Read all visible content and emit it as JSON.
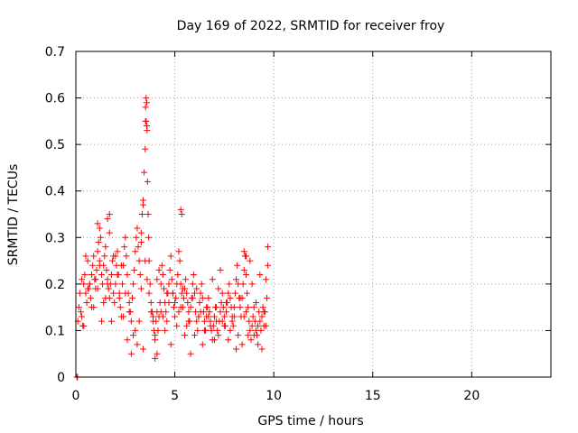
{
  "chart_data": {
    "type": "scatter",
    "title": "Day 169 of 2022, SRMTID for receiver froy",
    "xlabel": "GPS time / hours",
    "ylabel": "SRMTID / TECUs",
    "xlim": [
      0,
      24
    ],
    "ylim": [
      0,
      0.7
    ],
    "xticks": [
      0,
      5,
      10,
      15,
      20
    ],
    "xtick_labels": [
      "0",
      "5",
      "10",
      "15",
      "20"
    ],
    "yticks": [
      0,
      0.1,
      0.2,
      0.3,
      0.4,
      0.5,
      0.6,
      0.7
    ],
    "ytick_labels": [
      "0",
      "0.1",
      "0.2",
      "0.3",
      "0.4",
      "0.5",
      "0.6",
      "0.7"
    ],
    "grid": true,
    "marker": "+",
    "color": "#ff0000",
    "series": [
      {
        "name": "SRMTID",
        "x": [
          0.05,
          0.08,
          0.1,
          0.15,
          0.2,
          0.25,
          0.3,
          0.35,
          0.4,
          0.45,
          0.5,
          0.55,
          0.6,
          0.65,
          0.7,
          0.75,
          0.8,
          0.85,
          0.9,
          0.95,
          1.0,
          1.05,
          1.1,
          1.15,
          1.2,
          1.25,
          1.3,
          1.35,
          1.4,
          1.45,
          1.5,
          1.55,
          1.6,
          1.65,
          1.7,
          1.75,
          1.8,
          1.85,
          1.9,
          1.95,
          2.0,
          2.05,
          2.1,
          2.15,
          2.2,
          2.25,
          2.3,
          2.35,
          2.4,
          2.45,
          2.5,
          2.55,
          2.6,
          2.65,
          2.7,
          2.75,
          2.8,
          2.85,
          2.9,
          2.95,
          3.0,
          3.05,
          3.1,
          3.15,
          3.2,
          3.25,
          3.3,
          3.35,
          3.4,
          3.45,
          3.5,
          3.52,
          3.55,
          3.58,
          3.6,
          3.62,
          3.65,
          3.68,
          3.7,
          3.75,
          3.8,
          3.85,
          3.9,
          3.95,
          4.0,
          4.05,
          4.1,
          4.15,
          4.2,
          4.25,
          4.3,
          4.35,
          4.4,
          4.45,
          4.5,
          4.55,
          4.6,
          4.65,
          4.7,
          4.75,
          4.8,
          4.85,
          4.9,
          4.95,
          5.0,
          5.05,
          5.1,
          5.15,
          5.2,
          5.25,
          5.3,
          5.35,
          5.4,
          5.45,
          5.5,
          5.55,
          5.6,
          5.65,
          5.7,
          5.75,
          5.8,
          5.85,
          5.9,
          5.95,
          6.0,
          6.05,
          6.1,
          6.15,
          6.2,
          6.25,
          6.3,
          6.35,
          6.4,
          6.45,
          6.5,
          6.55,
          6.6,
          6.65,
          6.7,
          6.75,
          6.8,
          6.85,
          6.9,
          6.95,
          7.0,
          7.05,
          7.1,
          7.15,
          7.2,
          7.25,
          7.3,
          7.35,
          7.4,
          7.45,
          7.5,
          7.55,
          7.6,
          7.65,
          7.7,
          7.75,
          7.8,
          7.85,
          7.9,
          7.95,
          8.0,
          8.05,
          8.1,
          8.15,
          8.2,
          8.25,
          8.3,
          8.35,
          8.4,
          8.45,
          8.5,
          8.55,
          8.6,
          8.65,
          8.7,
          8.75,
          8.8,
          8.85,
          8.9,
          8.95,
          9.0,
          9.05,
          9.1,
          9.15,
          9.2,
          9.25,
          9.3,
          9.35,
          9.4,
          9.45,
          9.5,
          9.55,
          9.6,
          9.65,
          9.7,
          0.3,
          0.5,
          0.7,
          0.9,
          1.1,
          1.3,
          1.5,
          1.7,
          1.9,
          2.1,
          2.3,
          2.5,
          2.7,
          2.9,
          3.1,
          3.3,
          3.5,
          3.7,
          3.9,
          4.1,
          4.3,
          4.5,
          4.7,
          4.9,
          5.1,
          5.3,
          5.5,
          5.7,
          5.9,
          6.1,
          6.3,
          6.5,
          6.7,
          6.9,
          7.1,
          7.3,
          7.5,
          7.7,
          7.9,
          8.1,
          8.3,
          8.5,
          8.7,
          8.9,
          9.1,
          9.3,
          9.5,
          9.7,
          0.4,
          0.6,
          0.8,
          1.0,
          1.2,
          1.4,
          1.6,
          1.8,
          2.0,
          2.2,
          2.4,
          2.6,
          2.8,
          3.0,
          3.2,
          3.4,
          3.6,
          3.8,
          4.0,
          4.2,
          4.4,
          4.6,
          4.8,
          5.0,
          5.2,
          5.4,
          5.6,
          5.8,
          6.0,
          6.2,
          6.4,
          6.6,
          6.8,
          7.0,
          7.2,
          7.4,
          7.6,
          7.8,
          8.0,
          8.2,
          8.4,
          8.6,
          8.8,
          9.0,
          9.2,
          9.4,
          9.6,
          1.6,
          1.7,
          1.1,
          1.2,
          3.3,
          3.4,
          4.0,
          4.1,
          5.3,
          5.35,
          8.5,
          8.6,
          3.52,
          3.55,
          3.58
        ],
        "y": [
          0.0,
          0.0,
          0.12,
          0.15,
          0.18,
          0.14,
          0.13,
          0.11,
          0.2,
          0.22,
          0.18,
          0.16,
          0.25,
          0.19,
          0.2,
          0.17,
          0.22,
          0.24,
          0.26,
          0.21,
          0.19,
          0.23,
          0.27,
          0.29,
          0.25,
          0.3,
          0.22,
          0.2,
          0.24,
          0.26,
          0.28,
          0.23,
          0.21,
          0.19,
          0.17,
          0.2,
          0.22,
          0.25,
          0.18,
          0.16,
          0.2,
          0.24,
          0.27,
          0.22,
          0.18,
          0.15,
          0.13,
          0.2,
          0.24,
          0.28,
          0.3,
          0.26,
          0.22,
          0.18,
          0.16,
          0.14,
          0.12,
          0.17,
          0.2,
          0.23,
          0.27,
          0.3,
          0.32,
          0.28,
          0.25,
          0.22,
          0.29,
          0.35,
          0.38,
          0.44,
          0.49,
          0.55,
          0.6,
          0.59,
          0.53,
          0.42,
          0.35,
          0.3,
          0.25,
          0.2,
          0.16,
          0.14,
          0.12,
          0.1,
          0.08,
          0.12,
          0.14,
          0.1,
          0.13,
          0.16,
          0.2,
          0.24,
          0.22,
          0.19,
          0.16,
          0.14,
          0.12,
          0.18,
          0.2,
          0.23,
          0.26,
          0.21,
          0.18,
          0.15,
          0.13,
          0.17,
          0.2,
          0.22,
          0.27,
          0.25,
          0.2,
          0.18,
          0.15,
          0.17,
          0.19,
          0.21,
          0.18,
          0.16,
          0.14,
          0.12,
          0.15,
          0.17,
          0.2,
          0.22,
          0.18,
          0.14,
          0.12,
          0.1,
          0.13,
          0.16,
          0.18,
          0.2,
          0.17,
          0.14,
          0.12,
          0.1,
          0.13,
          0.15,
          0.17,
          0.14,
          0.12,
          0.1,
          0.08,
          0.11,
          0.13,
          0.15,
          0.12,
          0.1,
          0.09,
          0.12,
          0.14,
          0.16,
          0.18,
          0.15,
          0.13,
          0.11,
          0.14,
          0.16,
          0.18,
          0.2,
          0.17,
          0.15,
          0.13,
          0.11,
          0.15,
          0.18,
          0.21,
          0.24,
          0.2,
          0.17,
          0.15,
          0.13,
          0.17,
          0.2,
          0.23,
          0.26,
          0.22,
          0.18,
          0.15,
          0.12,
          0.1,
          0.08,
          0.11,
          0.13,
          0.15,
          0.12,
          0.1,
          0.09,
          0.11,
          0.14,
          0.12,
          0.1,
          0.13,
          0.15,
          0.11,
          0.14,
          0.21,
          0.17,
          0.24,
          0.21,
          0.26,
          0.2,
          0.15,
          0.19,
          0.12,
          0.17,
          0.31,
          0.26,
          0.22,
          0.24,
          0.18,
          0.14,
          0.09,
          0.07,
          0.19,
          0.25,
          0.18,
          0.13,
          0.21,
          0.14,
          0.1,
          0.16,
          0.18,
          0.11,
          0.15,
          0.09,
          0.12,
          0.17,
          0.19,
          0.14,
          0.1,
          0.13,
          0.21,
          0.15,
          0.23,
          0.11,
          0.08,
          0.12,
          0.06,
          0.17,
          0.13,
          0.09,
          0.2,
          0.16,
          0.22,
          0.14,
          0.28,
          0.11,
          0.19,
          0.15,
          0.21,
          0.24,
          0.16,
          0.2,
          0.12,
          0.26,
          0.17,
          0.13,
          0.08,
          0.05,
          0.1,
          0.12,
          0.06,
          0.21,
          0.14,
          0.09,
          0.23,
          0.13,
          0.18,
          0.07,
          0.16,
          0.14,
          0.19,
          0.11,
          0.05,
          0.09,
          0.13,
          0.07,
          0.15,
          0.11,
          0.08,
          0.19,
          0.12,
          0.16,
          0.1,
          0.13,
          0.09,
          0.07,
          0.14,
          0.25,
          0.09,
          0.07,
          0.06,
          0.11,
          0.34,
          0.35,
          0.33,
          0.32,
          0.31,
          0.37,
          0.04,
          0.05,
          0.36,
          0.35,
          0.27,
          0.26,
          0.58,
          0.55,
          0.54
        ]
      }
    ]
  }
}
